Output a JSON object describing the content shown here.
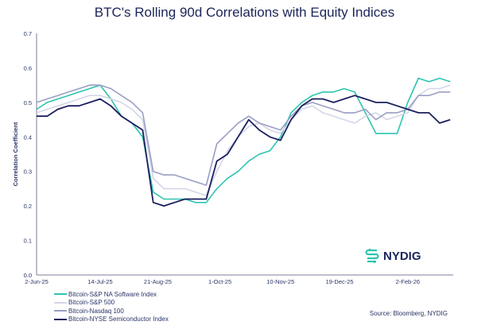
{
  "chart_data": {
    "type": "line",
    "title": "BTC's Rolling 90d Correlations with Equity Indices",
    "ylabel": "Correlation Coefficient",
    "xlabel": "",
    "ylim": [
      0,
      0.7
    ],
    "yticks": [
      "0.0",
      "0.1",
      "0.2",
      "0.3",
      "0.4",
      "0.5",
      "0.6",
      "0.7"
    ],
    "xticks": [
      "2-Jun-25",
      "14-Jul-25",
      "21-Aug-25",
      "1-Oct-25",
      "10-Nov-25",
      "19-Dec-25",
      "2-Feb-26"
    ],
    "xtick_dates": [
      "2025-06-02",
      "2025-07-14",
      "2025-08-21",
      "2025-10-01",
      "2025-11-10",
      "2025-12-19",
      "2026-02-02"
    ],
    "xlim": [
      "2025-06-02",
      "2026-03-04"
    ],
    "grid": false,
    "legend_position": "bottom-left",
    "x": [
      "2025-06-02",
      "2025-06-09",
      "2025-06-16",
      "2025-06-23",
      "2025-06-30",
      "2025-07-07",
      "2025-07-14",
      "2025-07-21",
      "2025-07-28",
      "2025-08-04",
      "2025-08-11",
      "2025-08-18",
      "2025-08-25",
      "2025-09-01",
      "2025-09-08",
      "2025-09-15",
      "2025-09-22",
      "2025-09-29",
      "2025-10-06",
      "2025-10-13",
      "2025-10-20",
      "2025-10-27",
      "2025-11-03",
      "2025-11-10",
      "2025-11-17",
      "2025-11-24",
      "2025-12-01",
      "2025-12-08",
      "2025-12-15",
      "2025-12-22",
      "2025-12-29",
      "2026-01-05",
      "2026-01-12",
      "2026-01-19",
      "2026-01-26",
      "2026-02-02",
      "2026-02-09",
      "2026-02-16",
      "2026-02-23",
      "2026-03-02"
    ],
    "series": [
      {
        "name": "Bitcoin-S&P NA Software Index",
        "color": "#2ec4b0",
        "values": [
          0.48,
          0.5,
          0.51,
          0.52,
          0.53,
          0.54,
          0.55,
          0.51,
          0.46,
          0.44,
          0.4,
          0.24,
          0.22,
          0.22,
          0.22,
          0.21,
          0.21,
          0.25,
          0.28,
          0.3,
          0.33,
          0.35,
          0.36,
          0.4,
          0.47,
          0.5,
          0.52,
          0.53,
          0.53,
          0.54,
          0.53,
          0.47,
          0.41,
          0.41,
          0.41,
          0.5,
          0.57,
          0.56,
          0.57,
          0.56
        ]
      },
      {
        "name": "Bitcoin-S&P 500",
        "color": "#d3d6e8",
        "values": [
          0.47,
          0.48,
          0.49,
          0.5,
          0.51,
          0.52,
          0.52,
          0.51,
          0.5,
          0.48,
          0.45,
          0.28,
          0.25,
          0.25,
          0.25,
          0.24,
          0.23,
          0.3,
          0.36,
          0.4,
          0.43,
          0.44,
          0.42,
          0.41,
          0.45,
          0.48,
          0.49,
          0.47,
          0.46,
          0.45,
          0.44,
          0.46,
          0.47,
          0.45,
          0.46,
          0.47,
          0.52,
          0.54,
          0.54,
          0.55
        ]
      },
      {
        "name": "Bitcoin-Nasdaq 100",
        "color": "#9a9fc4",
        "values": [
          0.5,
          0.51,
          0.52,
          0.53,
          0.54,
          0.55,
          0.55,
          0.54,
          0.52,
          0.5,
          0.47,
          0.3,
          0.29,
          0.29,
          0.28,
          0.27,
          0.26,
          0.38,
          0.41,
          0.44,
          0.46,
          0.44,
          0.43,
          0.42,
          0.46,
          0.49,
          0.5,
          0.49,
          0.48,
          0.47,
          0.47,
          0.48,
          0.45,
          0.47,
          0.47,
          0.48,
          0.52,
          0.52,
          0.53,
          0.53
        ]
      },
      {
        "name": "Bitcoin-NYSE Semiconductor Index",
        "color": "#1a1f5e",
        "values": [
          0.46,
          0.46,
          0.48,
          0.49,
          0.49,
          0.5,
          0.51,
          0.49,
          0.46,
          0.44,
          0.42,
          0.21,
          0.2,
          0.21,
          0.22,
          0.22,
          0.22,
          0.33,
          0.35,
          0.4,
          0.45,
          0.42,
          0.4,
          0.39,
          0.45,
          0.49,
          0.51,
          0.51,
          0.5,
          0.51,
          0.52,
          0.51,
          0.5,
          0.5,
          0.49,
          0.48,
          0.47,
          0.47,
          0.44,
          0.45
        ]
      }
    ],
    "source": "Source: Bloomberg, NYDIG"
  },
  "brand": {
    "logo_text": "NYDIG",
    "logo_color": "#2ec4b0"
  },
  "colors": {
    "axis": "#a7aabb",
    "text": "#1b2559"
  }
}
